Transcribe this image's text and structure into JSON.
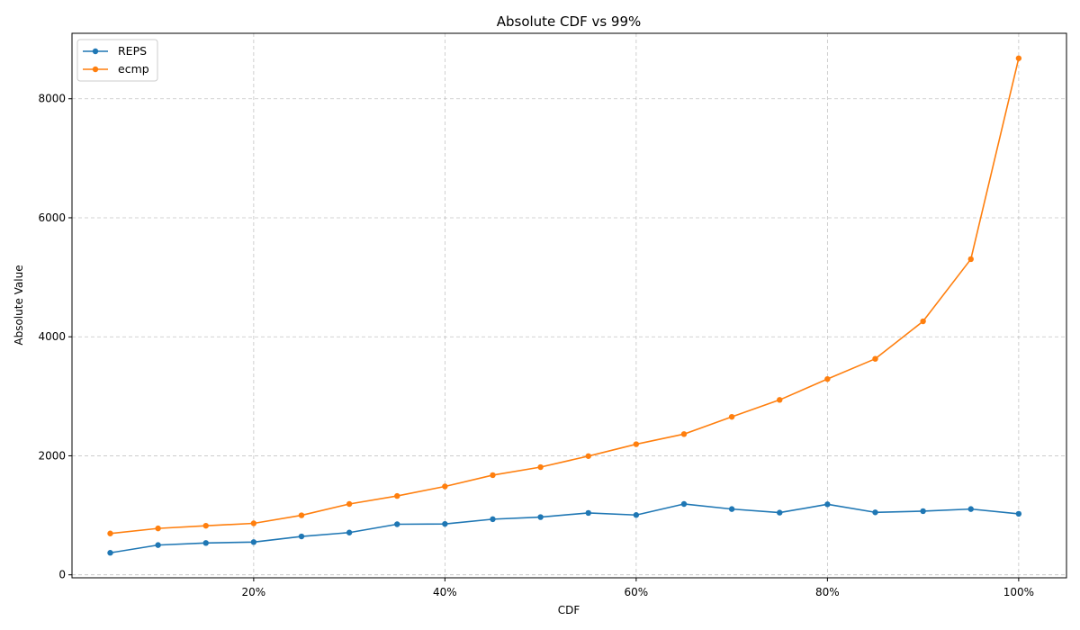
{
  "chart_data": {
    "type": "line",
    "title": "Absolute CDF vs 99%",
    "xlabel": "CDF",
    "ylabel": "Absolute Value",
    "x": [
      5,
      10,
      15,
      20,
      25,
      30,
      35,
      40,
      45,
      50,
      55,
      60,
      65,
      70,
      75,
      80,
      85,
      90,
      95,
      100
    ],
    "xlim": [
      1,
      105
    ],
    "ylim": [
      -50,
      9100
    ],
    "x_ticks": [
      20,
      40,
      60,
      80,
      100
    ],
    "x_tick_labels": [
      "20%",
      "40%",
      "60%",
      "80%",
      "100%"
    ],
    "y_ticks": [
      0,
      2000,
      4000,
      6000,
      8000
    ],
    "y_tick_labels": [
      "0",
      "2000",
      "4000",
      "6000",
      "8000"
    ],
    "grid": true,
    "legend_position": "top-left",
    "series": [
      {
        "name": "REPS",
        "color": "#1f77b4",
        "values": [
          370,
          500,
          535,
          550,
          645,
          710,
          850,
          855,
          935,
          970,
          1040,
          1005,
          1190,
          1105,
          1045,
          1185,
          1050,
          1070,
          1105,
          1025
        ]
      },
      {
        "name": "ecmp",
        "color": "#ff7f0e",
        "values": [
          695,
          780,
          825,
          865,
          1000,
          1190,
          1325,
          1485,
          1675,
          1810,
          1995,
          2195,
          2365,
          2655,
          2940,
          3290,
          3630,
          4260,
          5305,
          8680
        ]
      }
    ]
  }
}
